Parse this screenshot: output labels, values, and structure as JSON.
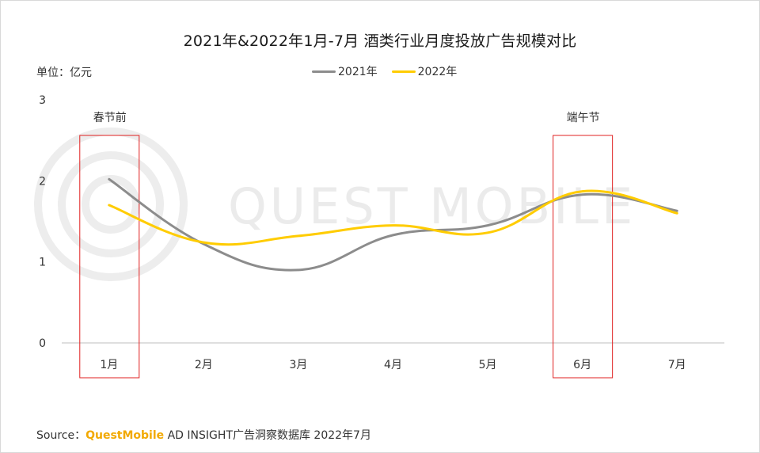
{
  "title": "2021年&2022年1月-7月 酒类行业月度投放广告规模对比",
  "unit_label": "单位：亿元",
  "watermark": "QUEST MOBILE",
  "source": {
    "prefix": "Source：",
    "brand": "QuestMobile",
    "suffix": "AD INSIGHT广告洞察数据库 2022年7月"
  },
  "colors": {
    "series_2021": "#8c8c8c",
    "series_2022": "#ffcc00",
    "highlight_box": "#e02020",
    "brand": "#f2a900"
  },
  "chart_data": {
    "type": "line",
    "smooth": true,
    "categories": [
      "1月",
      "2月",
      "3月",
      "4月",
      "5月",
      "6月",
      "7月"
    ],
    "series": [
      {
        "name": "2021年",
        "values": [
          2.02,
          1.22,
          0.9,
          1.33,
          1.45,
          1.83,
          1.63
        ]
      },
      {
        "name": "2022年",
        "values": [
          1.7,
          1.24,
          1.32,
          1.45,
          1.36,
          1.87,
          1.6
        ]
      }
    ],
    "ylim": [
      0,
      3
    ],
    "yticks": [
      0,
      1,
      2,
      3
    ],
    "xlabel": "",
    "ylabel": "",
    "grid": false,
    "legend_position": "top-center",
    "annotations": [
      {
        "label": "春节前",
        "category": "1月"
      },
      {
        "label": "端午节",
        "category": "6月"
      }
    ]
  }
}
